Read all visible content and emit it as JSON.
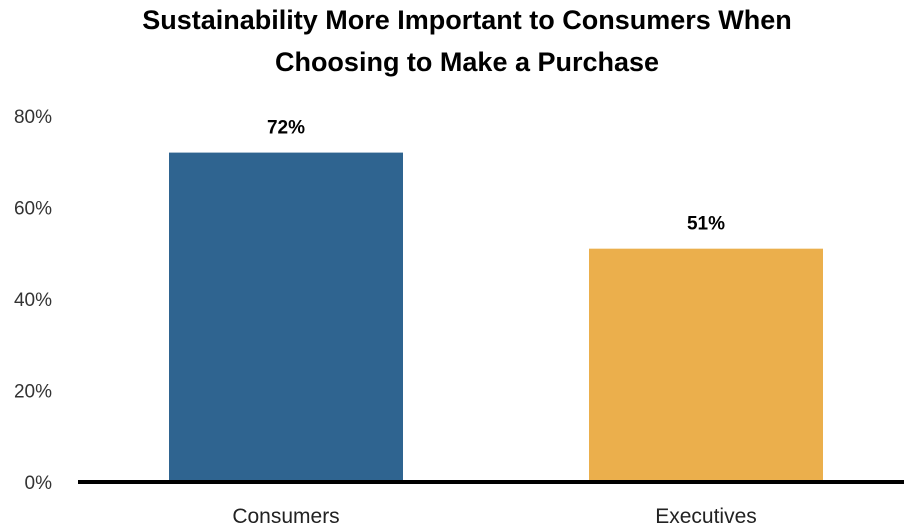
{
  "chart_data": {
    "type": "bar",
    "title_lines": [
      "Sustainability More Important to Consumers When",
      "Choosing to Make a Purchase"
    ],
    "categories": [
      "Consumers",
      "Executives"
    ],
    "values": [
      72,
      51
    ],
    "data_labels": [
      "72%",
      "51%"
    ],
    "colors": [
      "#2f6490",
      "#ebaf4c"
    ],
    "ylim": [
      0,
      80
    ],
    "yticks": [
      0,
      20,
      40,
      60,
      80
    ],
    "ytick_labels": [
      "0%",
      "20%",
      "40%",
      "60%",
      "80%"
    ],
    "xlabel": "",
    "ylabel": "",
    "grid": false,
    "legend": "none"
  }
}
